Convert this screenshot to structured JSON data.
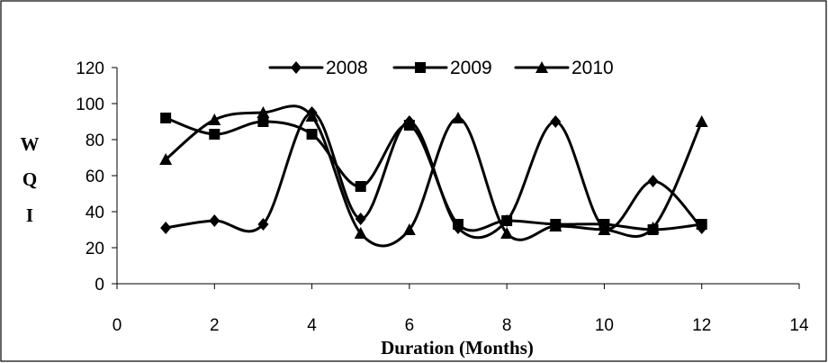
{
  "chart_data": {
    "type": "line",
    "smooth": true,
    "xlabel": "Duration (Months)",
    "ylabel": [
      "W",
      "Q",
      "I"
    ],
    "xlim": [
      0,
      14
    ],
    "ylim": [
      0,
      120
    ],
    "xticks": [
      0,
      2,
      4,
      6,
      8,
      10,
      12,
      14
    ],
    "yticks": [
      0,
      20,
      40,
      60,
      80,
      100,
      120
    ],
    "grid": false,
    "legend": "top-center",
    "x": [
      1,
      2,
      3,
      4,
      5,
      6,
      7,
      8,
      9,
      10,
      11,
      12
    ],
    "series": [
      {
        "name": "2008",
        "marker": "diamond",
        "color": "#000000",
        "values": [
          31,
          35,
          33,
          95,
          36,
          90,
          31,
          35,
          90,
          31,
          57,
          31
        ]
      },
      {
        "name": "2009",
        "marker": "square",
        "color": "#000000",
        "values": [
          92,
          83,
          90,
          83,
          54,
          88,
          33,
          35,
          33,
          33,
          30,
          33
        ]
      },
      {
        "name": "2010",
        "marker": "triangle",
        "color": "#000000",
        "values": [
          69,
          91,
          95,
          93,
          28,
          30,
          92,
          28,
          32,
          30,
          31,
          90
        ]
      }
    ]
  }
}
